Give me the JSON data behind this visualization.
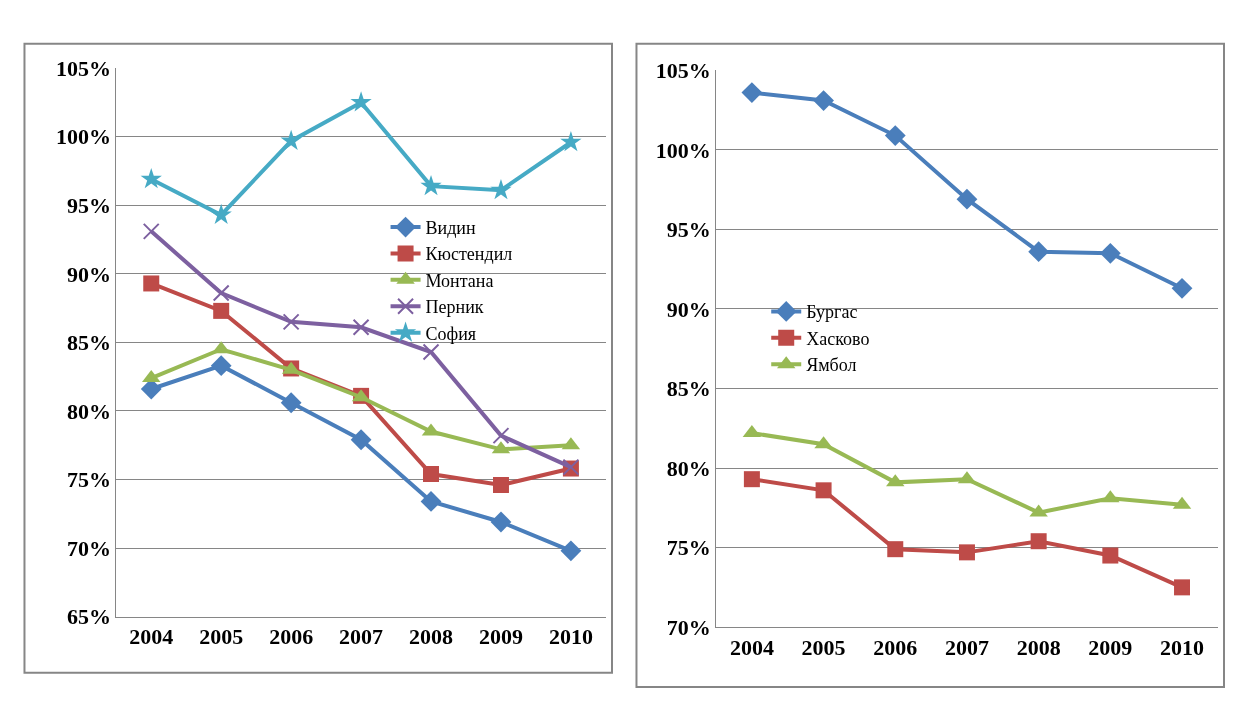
{
  "chart_data": [
    {
      "type": "line",
      "categories": [
        "2004",
        "2005",
        "2006",
        "2007",
        "2008",
        "2009",
        "2010"
      ],
      "ylim": [
        65,
        105
      ],
      "yticks": [
        {
          "value": 65,
          "label": "65%"
        },
        {
          "value": 70,
          "label": "70%"
        },
        {
          "value": 75,
          "label": "75%"
        },
        {
          "value": 80,
          "label": "80%"
        },
        {
          "value": 85,
          "label": "85%"
        },
        {
          "value": 90,
          "label": "90%"
        },
        {
          "value": 95,
          "label": "95%"
        },
        {
          "value": 100,
          "label": "100%"
        },
        {
          "value": 105,
          "label": "105%"
        }
      ],
      "grid": "y",
      "legend": "center",
      "line_style": "solid",
      "series": [
        {
          "name": "Видин",
          "color": "#4a7ebb",
          "marker": "diamond",
          "values": [
            81.6,
            83.3,
            80.6,
            77.9,
            73.4,
            71.9,
            69.8
          ]
        },
        {
          "name": "Кюстендил",
          "color": "#be4b48",
          "marker": "square",
          "values": [
            89.3,
            87.3,
            83.1,
            81.1,
            75.4,
            74.6,
            75.8
          ]
        },
        {
          "name": "Монтана",
          "color": "#98b954",
          "marker": "triangle",
          "values": [
            82.4,
            84.5,
            83.0,
            81.0,
            78.5,
            77.2,
            77.5
          ]
        },
        {
          "name": "Перник",
          "color": "#7d60a0",
          "marker": "cross",
          "values": [
            93.1,
            88.6,
            86.5,
            86.1,
            84.3,
            78.2,
            75.9
          ]
        },
        {
          "name": "София",
          "color": "#46aac5",
          "marker": "star",
          "values": [
            96.9,
            94.3,
            99.7,
            102.5,
            96.4,
            96.1,
            99.6
          ]
        }
      ]
    },
    {
      "type": "line",
      "categories": [
        "2004",
        "2005",
        "2006",
        "2007",
        "2008",
        "2009",
        "2010"
      ],
      "ylim": [
        70,
        105
      ],
      "yticks": [
        {
          "value": 70,
          "label": "70%"
        },
        {
          "value": 75,
          "label": "75%"
        },
        {
          "value": 80,
          "label": "80%"
        },
        {
          "value": 85,
          "label": "85%"
        },
        {
          "value": 90,
          "label": "90%"
        },
        {
          "value": 95,
          "label": "95%"
        },
        {
          "value": 100,
          "label": "100%"
        },
        {
          "value": 105,
          "label": "105%"
        }
      ],
      "grid": "y",
      "legend": "left",
      "line_style": "solid",
      "series": [
        {
          "name": "Бургас",
          "color": "#4a7ebb",
          "marker": "diamond",
          "values": [
            103.6,
            103.1,
            100.9,
            96.9,
            93.6,
            93.5,
            91.3
          ]
        },
        {
          "name": "Хасково",
          "color": "#be4b48",
          "marker": "square",
          "values": [
            79.3,
            78.6,
            74.9,
            74.7,
            75.4,
            74.5,
            72.5
          ]
        },
        {
          "name": "Ямбол",
          "color": "#98b954",
          "marker": "triangle",
          "values": [
            82.2,
            81.5,
            79.1,
            79.3,
            77.2,
            78.1,
            77.7
          ]
        }
      ]
    }
  ]
}
